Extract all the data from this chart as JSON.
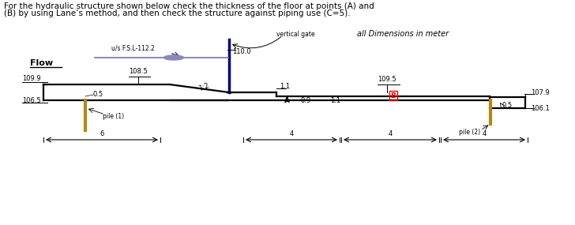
{
  "title_line1": "For the hydraulic structure shown below check the thickness of the floor at points (A) and",
  "title_line2": "(B) by using Lane’s method, and then check the structure against piping use (C=5).",
  "annotation_fsl": "u/s F.S.L-112.2",
  "annotation_vgate": "vertical gate",
  "annotation_dims": "all Dimensions in meter",
  "annotation_flow": "Flow",
  "label_110": "110.0",
  "label_1085": "108.5",
  "label_1089": "109.9",
  "label_1065": "106.5",
  "label_pile1": "pile (1)",
  "label_11a": "1.1",
  "label_1095": "109.5",
  "label_1079": "107.9",
  "label_A": "A",
  "label_B": "B",
  "label_09": "0.9",
  "label_11b": "1.1",
  "label_05b": "0.5",
  "label_pile2": "pile (2)",
  "label_1061": "106.1",
  "label_dim6": "6",
  "label_dim4a": "4",
  "label_dim4b": "4",
  "label_dim4c": "4",
  "label_12": "1:2",
  "label_05up": "0.5",
  "bg_color": "#ffffff",
  "structure_color": "#000000",
  "gate_color": "#00008b",
  "pile_color": "#b8860b",
  "text_color": "#000000",
  "water_color": "#7777aa"
}
